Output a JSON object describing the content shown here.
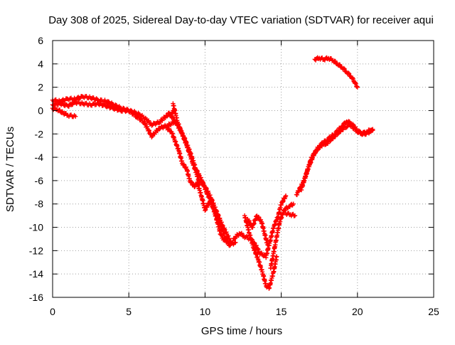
{
  "chart_data": {
    "type": "scatter",
    "title": "Day 308 of 2025, Sidereal Day-to-day VTEC variation (SDTVAR) for receiver aqui",
    "xlabel": "GPS time / hours",
    "ylabel": "SDTVAR / TECUs",
    "xlim": [
      0,
      25
    ],
    "ylim": [
      -16,
      6
    ],
    "xticks": [
      0,
      5,
      10,
      15,
      20,
      25
    ],
    "yticks": [
      -16,
      -14,
      -12,
      -10,
      -8,
      -6,
      -4,
      -2,
      0,
      2,
      4,
      6
    ],
    "grid": true,
    "marker": "+",
    "colors": {
      "series": "#ff0000",
      "grid": "#a0a0a0",
      "axis": "#000000"
    },
    "series": [
      {
        "name": "SDTVAR",
        "color": "#ff0000",
        "tracks": [
          {
            "x": [
              0.0,
              0.5,
              1.0,
              1.5,
              2.0,
              2.5,
              3.0,
              3.5,
              4.0,
              4.5,
              5.0,
              5.5,
              6.0,
              6.5,
              7.0,
              7.5,
              7.8,
              8.0
            ],
            "y": [
              0.9,
              0.8,
              1.0,
              1.0,
              1.2,
              1.1,
              0.9,
              0.8,
              0.5,
              0.2,
              0.0,
              -0.2,
              -0.6,
              -1.2,
              -1.0,
              -0.4,
              -0.2,
              0.0
            ]
          },
          {
            "x": [
              0.0,
              0.5,
              1.0,
              1.5,
              2.0,
              2.5,
              3.0,
              3.5,
              4.0,
              4.5,
              5.0,
              5.5,
              6.0,
              6.5,
              7.0,
              7.5,
              8.0
            ],
            "y": [
              0.5,
              0.6,
              0.4,
              0.7,
              0.6,
              0.5,
              0.6,
              0.4,
              0.2,
              0.0,
              0.0,
              -0.5,
              -1.0,
              -2.2,
              -1.5,
              -1.3,
              -1.0
            ]
          },
          {
            "x": [
              0.0,
              0.3,
              0.7,
              1.0,
              1.5
            ],
            "y": [
              0.2,
              0.1,
              -0.2,
              -0.4,
              -0.5
            ]
          },
          {
            "x": [
              7.5,
              7.8,
              8.0,
              8.3,
              8.5,
              8.8,
              9.0,
              9.3,
              9.5,
              9.8,
              10.0,
              10.3,
              10.5,
              10.8,
              11.0,
              11.2,
              11.5,
              11.8,
              12.0,
              12.3,
              12.6,
              13.0,
              13.3,
              13.6,
              14.0,
              14.3,
              14.5,
              14.8,
              15.0,
              15.3
            ],
            "y": [
              -1.5,
              -1.8,
              -2.5,
              -3.5,
              -4.5,
              -5.0,
              -6.0,
              -6.5,
              -6.2,
              -7.5,
              -8.5,
              -7.8,
              -8.2,
              -9.5,
              -10.5,
              -11.0,
              -11.3,
              -11.2,
              -10.8,
              -10.5,
              -10.8,
              -11.0,
              -11.5,
              -12.2,
              -12.5,
              -11.0,
              -10.0,
              -9.0,
              -8.0,
              -7.3
            ]
          },
          {
            "x": [
              7.6,
              8.0,
              8.3,
              8.6,
              9.0,
              9.4,
              9.8,
              10.1,
              10.4,
              10.7,
              11.0,
              11.3,
              11.6,
              12.0
            ],
            "y": [
              -0.2,
              -0.8,
              -1.5,
              -2.2,
              -3.5,
              -5.0,
              -6.0,
              -7.0,
              -7.8,
              -8.8,
              -9.8,
              -10.8,
              -11.5,
              -11.3
            ]
          },
          {
            "x": [
              7.9,
              8.2,
              8.5,
              8.8,
              9.2,
              9.6,
              10.0,
              10.4,
              10.8,
              11.2,
              11.6
            ],
            "y": [
              0.6,
              -1.0,
              -2.0,
              -3.0,
              -4.5,
              -6.0,
              -6.5,
              -7.5,
              -8.8,
              -10.0,
              -11.0
            ]
          },
          {
            "x": [
              12.6,
              12.9,
              13.2,
              13.5,
              13.8,
              14.0,
              14.2,
              14.5,
              14.7
            ],
            "y": [
              -9.0,
              -10.5,
              -11.8,
              -12.8,
              -14.0,
              -15.0,
              -15.2,
              -13.8,
              -12.5
            ]
          },
          {
            "x": [
              12.8,
              13.1,
              13.4,
              13.7,
              13.9,
              14.1
            ],
            "y": [
              -9.3,
              -10.0,
              -9.0,
              -9.5,
              -10.5,
              -11.5
            ]
          },
          {
            "x": [
              14.3,
              14.6,
              14.9,
              15.2,
              15.5,
              15.8
            ],
            "y": [
              -13.5,
              -11.5,
              -9.5,
              -8.5,
              -8.2,
              -8.0
            ]
          },
          {
            "x": [
              15.3,
              15.6,
              15.9
            ],
            "y": [
              -8.8,
              -8.9,
              -9.0
            ]
          },
          {
            "x": [
              16.0,
              16.5,
              17.0,
              17.5,
              18.0,
              18.5,
              19.0,
              19.3,
              19.6,
              20.0,
              20.3,
              20.6,
              21.0
            ],
            "y": [
              -7.2,
              -6.0,
              -4.0,
              -3.0,
              -2.5,
              -2.0,
              -1.3,
              -0.9,
              -1.1,
              -1.7,
              -2.0,
              -1.8,
              -1.6
            ]
          },
          {
            "x": [
              16.3,
              16.8,
              17.2,
              17.6,
              18.0,
              18.5,
              19.0,
              19.5,
              20.0,
              20.5,
              21.0
            ],
            "y": [
              -6.8,
              -4.8,
              -3.6,
              -3.0,
              -2.8,
              -2.2,
              -1.6,
              -1.2,
              -1.8,
              -2.0,
              -1.7
            ]
          },
          {
            "x": [
              17.2,
              17.5,
              17.8,
              18.1,
              18.4,
              18.7,
              19.0,
              19.3,
              19.6,
              19.8,
              20.0
            ],
            "y": [
              4.4,
              4.5,
              4.4,
              4.5,
              4.3,
              4.0,
              3.7,
              3.3,
              2.9,
              2.5,
              2.0
            ]
          }
        ]
      }
    ]
  }
}
